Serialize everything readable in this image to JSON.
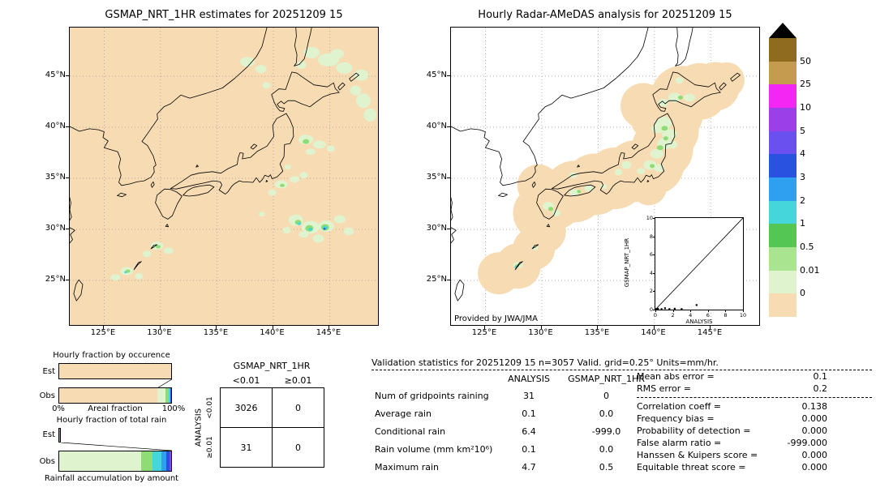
{
  "left_map": {
    "title": "GSMAP_NRT_1HR estimates for 20251209 15",
    "x_ticks": [
      "125°E",
      "130°E",
      "135°E",
      "140°E",
      "145°E"
    ],
    "y_ticks": [
      "45°N",
      "40°N",
      "35°N",
      "30°N",
      "25°N"
    ]
  },
  "right_map": {
    "title": "Hourly Radar-AMeDAS analysis for 20251209 15",
    "x_ticks": [
      "125°E",
      "130°E",
      "135°E",
      "140°E",
      "145°E"
    ],
    "y_ticks": [
      "45°N",
      "40°N",
      "35°N",
      "30°N",
      "25°N"
    ],
    "credit": "Provided by JWA/JMA",
    "inset": {
      "xlabel": "ANALYSIS",
      "ylabel": "GSMAP_NRT_1HR",
      "x_ticks": [
        "0",
        "2",
        "4",
        "6",
        "8",
        "10"
      ],
      "y_ticks": [
        "0",
        "2",
        "4",
        "6",
        "8",
        "10"
      ]
    }
  },
  "colorbar": {
    "labels": [
      "50",
      "25",
      "10",
      "5",
      "4",
      "3",
      "2",
      "1",
      "0.5",
      "0.01",
      "0"
    ],
    "colors": [
      "#8E6B1E",
      "#C59B50",
      "#F326F3",
      "#9B40E8",
      "#6A50EE",
      "#2A52E0",
      "#2F9FF0",
      "#45D6DC",
      "#53C654",
      "#A9E590",
      "#DFF3CF",
      "#F6DBB3"
    ],
    "triangle_color": "#000000",
    "units": "mm/hr"
  },
  "occurrence_chart": {
    "title": "Hourly fraction by occurence",
    "row_labels": [
      "Est",
      "Obs"
    ],
    "xlabel": "Areal fraction",
    "x_min_label": "0%",
    "x_max_label": "100%",
    "est_segments": [
      {
        "color": "#F6DBB3",
        "pct": 100
      }
    ],
    "obs_segments": [
      {
        "color": "#F6DBB3",
        "pct": 88
      },
      {
        "color": "#DFF3CF",
        "pct": 7
      },
      {
        "color": "#8FDC74",
        "pct": 2.5
      },
      {
        "color": "#45D6DC",
        "pct": 1.5
      },
      {
        "color": "#2A52E0",
        "pct": 1
      }
    ]
  },
  "totalrain_chart": {
    "title": "Hourly fraction of total rain",
    "row_labels": [
      "Est",
      "Obs"
    ],
    "xlabel": "Rainfall accumulation by amount",
    "est_segments": [
      {
        "color": "#53C654",
        "pct": 2.2
      }
    ],
    "obs_segments": [
      {
        "color": "#DFF3CF",
        "pct": 73
      },
      {
        "color": "#8FDC74",
        "pct": 10
      },
      {
        "color": "#45D6DC",
        "pct": 8.5
      },
      {
        "color": "#2F9FF0",
        "pct": 4.5
      },
      {
        "color": "#2A52E0",
        "pct": 2.5
      },
      {
        "color": "#9B40E8",
        "pct": 1.5
      }
    ]
  },
  "contingency": {
    "title": "GSMAP_NRT_1HR",
    "col_headers": [
      "<0.01",
      "≥0.01"
    ],
    "row_headers": [
      "<0.01",
      "≥0.01"
    ],
    "side_label": "ANALYSIS",
    "cells": [
      [
        "3026",
        "0"
      ],
      [
        "31",
        "0"
      ]
    ]
  },
  "stats": {
    "title": "Validation statistics for 20251209 15  n=3057 Valid. grid=0.25° Units=mm/hr.",
    "columns": [
      "ANALYSIS",
      "GSMAP_NRT_1HR"
    ],
    "rows": [
      {
        "label": "Num of gridpoints raining",
        "analysis": "31",
        "gsmap": "0"
      },
      {
        "label": "Average rain",
        "analysis": "0.1",
        "gsmap": "0.0"
      },
      {
        "label": "Conditional rain",
        "analysis": "6.4",
        "gsmap": "-999.0"
      },
      {
        "label": "Rain volume (mm km²10⁶)",
        "analysis": "0.1",
        "gsmap": "0.0"
      },
      {
        "label": "Maximum rain",
        "analysis": "4.7",
        "gsmap": "0.5"
      }
    ],
    "scores": [
      {
        "label": "Mean abs error =",
        "value": "0.1"
      },
      {
        "label": "RMS error =",
        "value": "0.2"
      },
      {
        "label": "Correlation coeff =",
        "value": "0.138"
      },
      {
        "label": "Frequency bias =",
        "value": "0.000"
      },
      {
        "label": "Probability of detection =",
        "value": "0.000"
      },
      {
        "label": "False alarm ratio =",
        "value": "-999.000"
      },
      {
        "label": "Hanssen & Kuipers score =",
        "value": "0.000"
      },
      {
        "label": "Equitable threat score =",
        "value": "0.000"
      }
    ]
  },
  "chart_data": [
    {
      "type": "heatmap",
      "name": "gsmap-estimate-map",
      "title": "GSMAP_NRT_1HR estimates for 20251209 15",
      "units": "mm/hr",
      "lon_ticks": [
        "125°E",
        "130°E",
        "135°E",
        "140°E",
        "145°E"
      ],
      "lat_ticks": [
        "45°N",
        "40°N",
        "35°N",
        "30°N",
        "25°N"
      ],
      "levels": [
        0,
        0.01,
        0.5,
        1,
        2,
        3,
        4,
        5,
        10,
        25,
        50
      ],
      "max_value": 0.5,
      "summary": "Mostly 0 mm/hr (wheat background); scattered light rain patches 0.01-3 mm/hr over ocean east and south of Japan, around 30N 142-146E, near Amami and Okinawa"
    },
    {
      "type": "heatmap",
      "name": "radar-amedas-map",
      "title": "Hourly Radar-AMeDAS analysis for 20251209 15",
      "units": "mm/hr",
      "lon_ticks": [
        "125°E",
        "130°E",
        "135°E",
        "140°E",
        "145°E"
      ],
      "lat_ticks": [
        "45°N",
        "40°N",
        "35°N",
        "30°N",
        "25°N"
      ],
      "levels": [
        0,
        0.01,
        0.5,
        1,
        2,
        3,
        4,
        5,
        10,
        25,
        50
      ],
      "max_value": 4.7,
      "annotation": "Provided by JWA/JMA",
      "summary": "Radar coverage band (0 mm/hr wheat) along the Japanese archipelago with light rain 0.01-2 mm/hr over northern Honshu, Kanto, southwest Hokkaido, Kyushu and Okinawa"
    },
    {
      "type": "scatter",
      "name": "gsmap-vs-analysis-inset",
      "xlabel": "ANALYSIS",
      "ylabel": "GSMAP_NRT_1HR",
      "xlim": [
        0,
        10
      ],
      "ylim": [
        0,
        10
      ],
      "diagonal_line": true,
      "points": [
        [
          0.1,
          0.05
        ],
        [
          0.3,
          0.1
        ],
        [
          0.7,
          0.05
        ],
        [
          1.1,
          0.15
        ],
        [
          1.6,
          0.05
        ],
        [
          2.2,
          0.1
        ],
        [
          3.0,
          0.05
        ],
        [
          4.7,
          0.5
        ]
      ]
    },
    {
      "type": "bar",
      "name": "hourly-fraction-by-occurence",
      "title": "Hourly fraction by occurence",
      "orientation": "horizontal",
      "stacked": true,
      "categories": [
        "Est",
        "Obs"
      ],
      "series": [
        {
          "name": "Est",
          "segments_pct": [
            100
          ]
        },
        {
          "name": "Obs",
          "segments_pct": [
            88,
            7,
            2.5,
            1.5,
            1
          ]
        }
      ],
      "xlabel": "Areal fraction",
      "xlim": [
        "0%",
        "100%"
      ]
    },
    {
      "type": "bar",
      "name": "hourly-fraction-of-total-rain",
      "title": "Hourly fraction of total rain",
      "orientation": "horizontal",
      "stacked": true,
      "categories": [
        "Est",
        "Obs"
      ],
      "series": [
        {
          "name": "Est",
          "segments_pct": [
            2.2
          ]
        },
        {
          "name": "Obs",
          "segments_pct": [
            73,
            10,
            8.5,
            4.5,
            2.5,
            1.5
          ]
        }
      ],
      "xlabel": "Rainfall accumulation by amount"
    },
    {
      "type": "table",
      "name": "contingency-table",
      "title": "GSMAP_NRT_1HR vs ANALYSIS",
      "col_headers": [
        "GSMAP<0.01",
        "GSMAP≥0.01"
      ],
      "row_headers": [
        "ANALYSIS<0.01",
        "ANALYSIS≥0.01"
      ],
      "values": [
        [
          3026,
          0
        ],
        [
          31,
          0
        ]
      ]
    },
    {
      "type": "table",
      "name": "validation-statistics",
      "title": "Validation statistics for 20251209 15",
      "n": 3057,
      "grid": "0.25°",
      "units": "mm/hr",
      "columns": [
        "ANALYSIS",
        "GSMAP_NRT_1HR"
      ],
      "rows": [
        [
          "Num of gridpoints raining",
          31,
          0
        ],
        [
          "Average rain",
          0.1,
          0.0
        ],
        [
          "Conditional rain",
          6.4,
          -999.0
        ],
        [
          "Rain volume (mm km²10⁶)",
          0.1,
          0.0
        ],
        [
          "Maximum rain",
          4.7,
          0.5
        ]
      ],
      "scores": {
        "Mean abs error": 0.1,
        "RMS error": 0.2,
        "Correlation coeff": 0.138,
        "Frequency bias": 0.0,
        "Probability of detection": 0.0,
        "False alarm ratio": -999.0,
        "Hanssen & Kuipers score": 0.0,
        "Equitable threat score": 0.0
      }
    }
  ]
}
